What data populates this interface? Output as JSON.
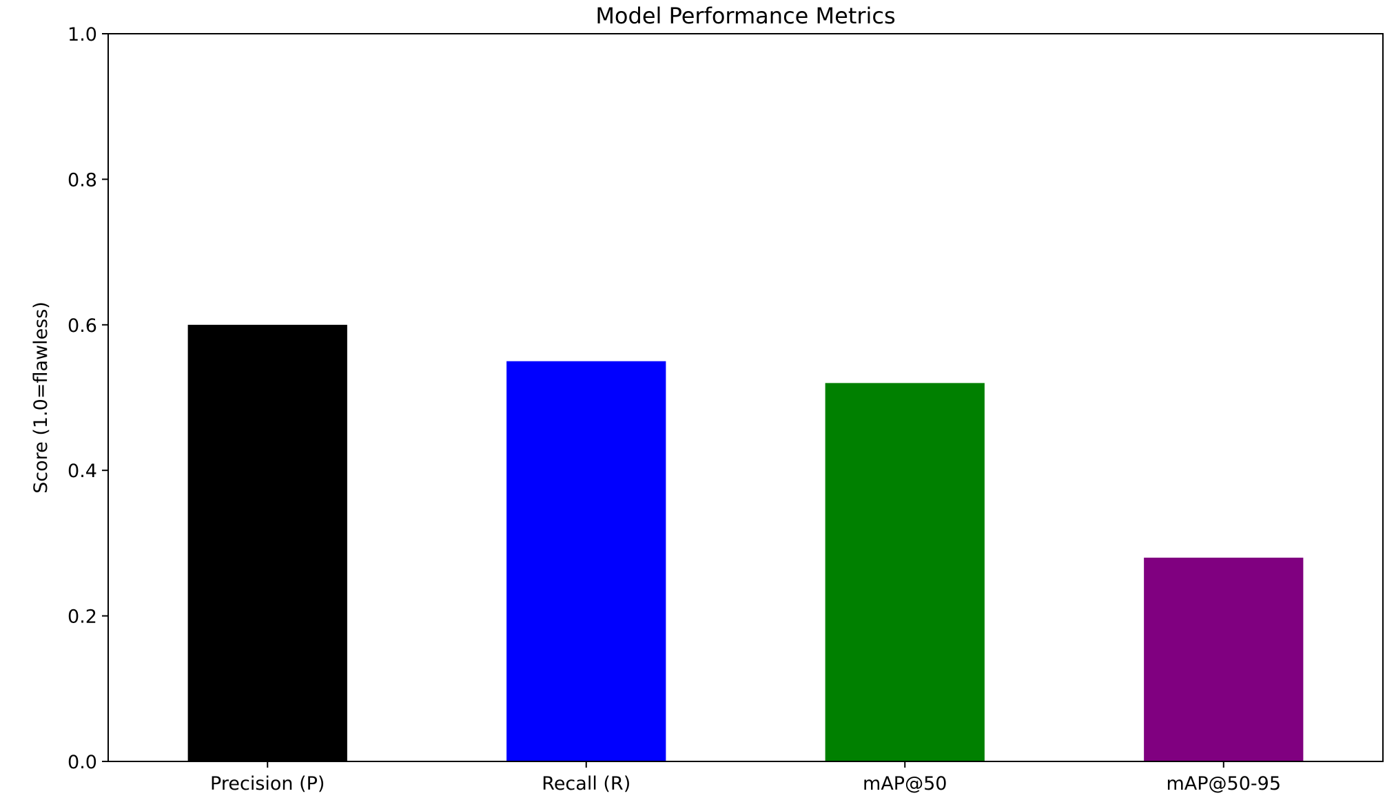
{
  "chart_data": {
    "type": "bar",
    "title": "Model Performance Metrics",
    "xlabel": "",
    "ylabel": "Score   (1.0=flawless)",
    "categories": [
      "Precision (P)",
      "Recall (R)",
      "mAP@50",
      "mAP@50-95"
    ],
    "values": [
      0.6,
      0.55,
      0.52,
      0.28
    ],
    "colors": [
      "#000000",
      "#0000ff",
      "#008000",
      "#800080"
    ],
    "ylim": [
      0.0,
      1.0
    ],
    "yticks": [
      0.0,
      0.2,
      0.4,
      0.6,
      0.8,
      1.0
    ],
    "ytick_labels": [
      "0.0",
      "0.2",
      "0.4",
      "0.6",
      "0.8",
      "1.0"
    ],
    "grid": false,
    "legend": "none"
  }
}
